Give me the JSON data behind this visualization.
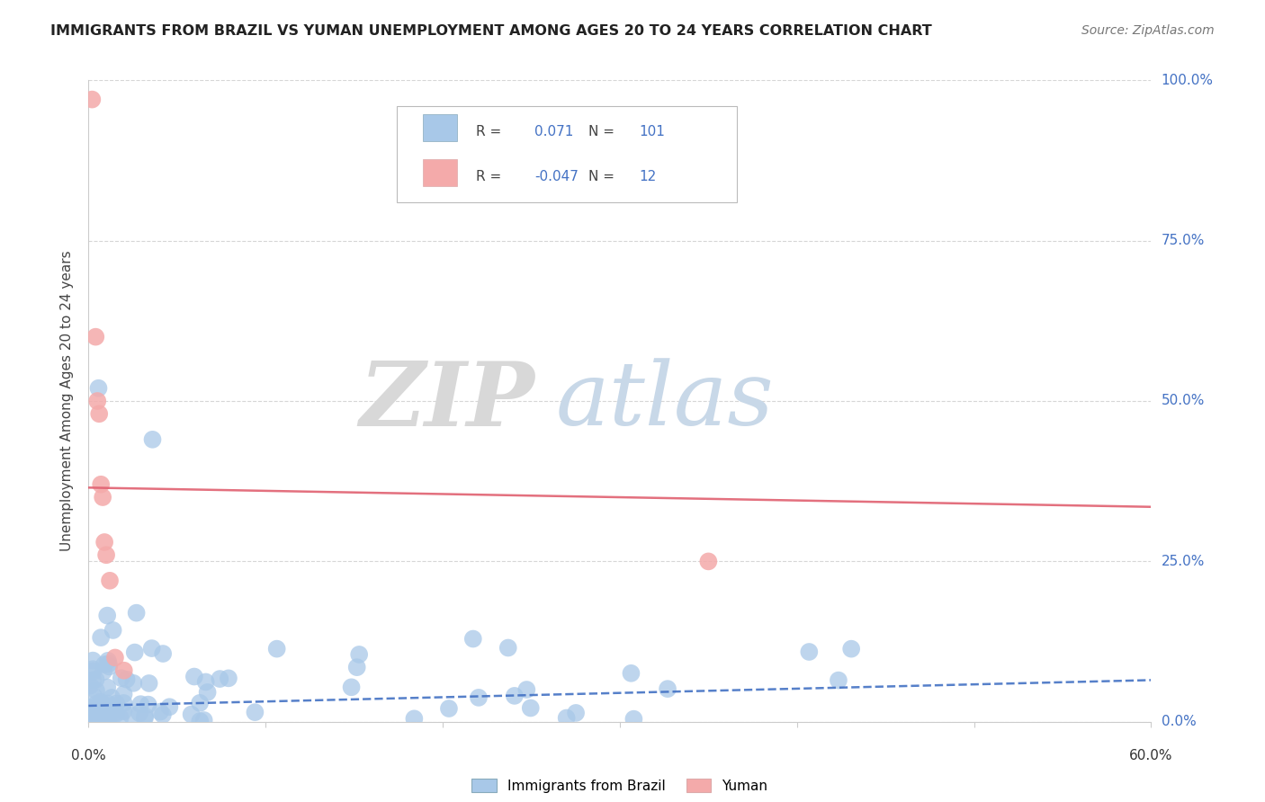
{
  "title": "IMMIGRANTS FROM BRAZIL VS YUMAN UNEMPLOYMENT AMONG AGES 20 TO 24 YEARS CORRELATION CHART",
  "source": "Source: ZipAtlas.com",
  "ylabel": "Unemployment Among Ages 20 to 24 years",
  "right_yticks": [
    "0.0%",
    "25.0%",
    "50.0%",
    "75.0%",
    "100.0%"
  ],
  "right_ytick_vals": [
    0.0,
    0.25,
    0.5,
    0.75,
    1.0
  ],
  "xlim": [
    0.0,
    0.6
  ],
  "ylim": [
    0.0,
    1.0
  ],
  "blue_color": "#A8C8E8",
  "pink_color": "#F4AAAA",
  "blue_line_color": "#4472C4",
  "pink_line_color": "#E06070",
  "grid_color": "#CCCCCC",
  "background_color": "#FFFFFF",
  "watermark_zip": "ZIP",
  "watermark_atlas": "atlas",
  "watermark_zip_color": "#D8D8D8",
  "watermark_atlas_color": "#C8D8E8",
  "blue_trend_x0": 0.0,
  "blue_trend_x1": 0.6,
  "blue_trend_y0": 0.025,
  "blue_trend_y1": 0.065,
  "pink_trend_x0": 0.0,
  "pink_trend_x1": 0.6,
  "pink_trend_y0": 0.365,
  "pink_trend_y1": 0.335,
  "legend_r_blue": "0.071",
  "legend_n_blue": "101",
  "legend_r_pink": "-0.047",
  "legend_n_pink": "12"
}
